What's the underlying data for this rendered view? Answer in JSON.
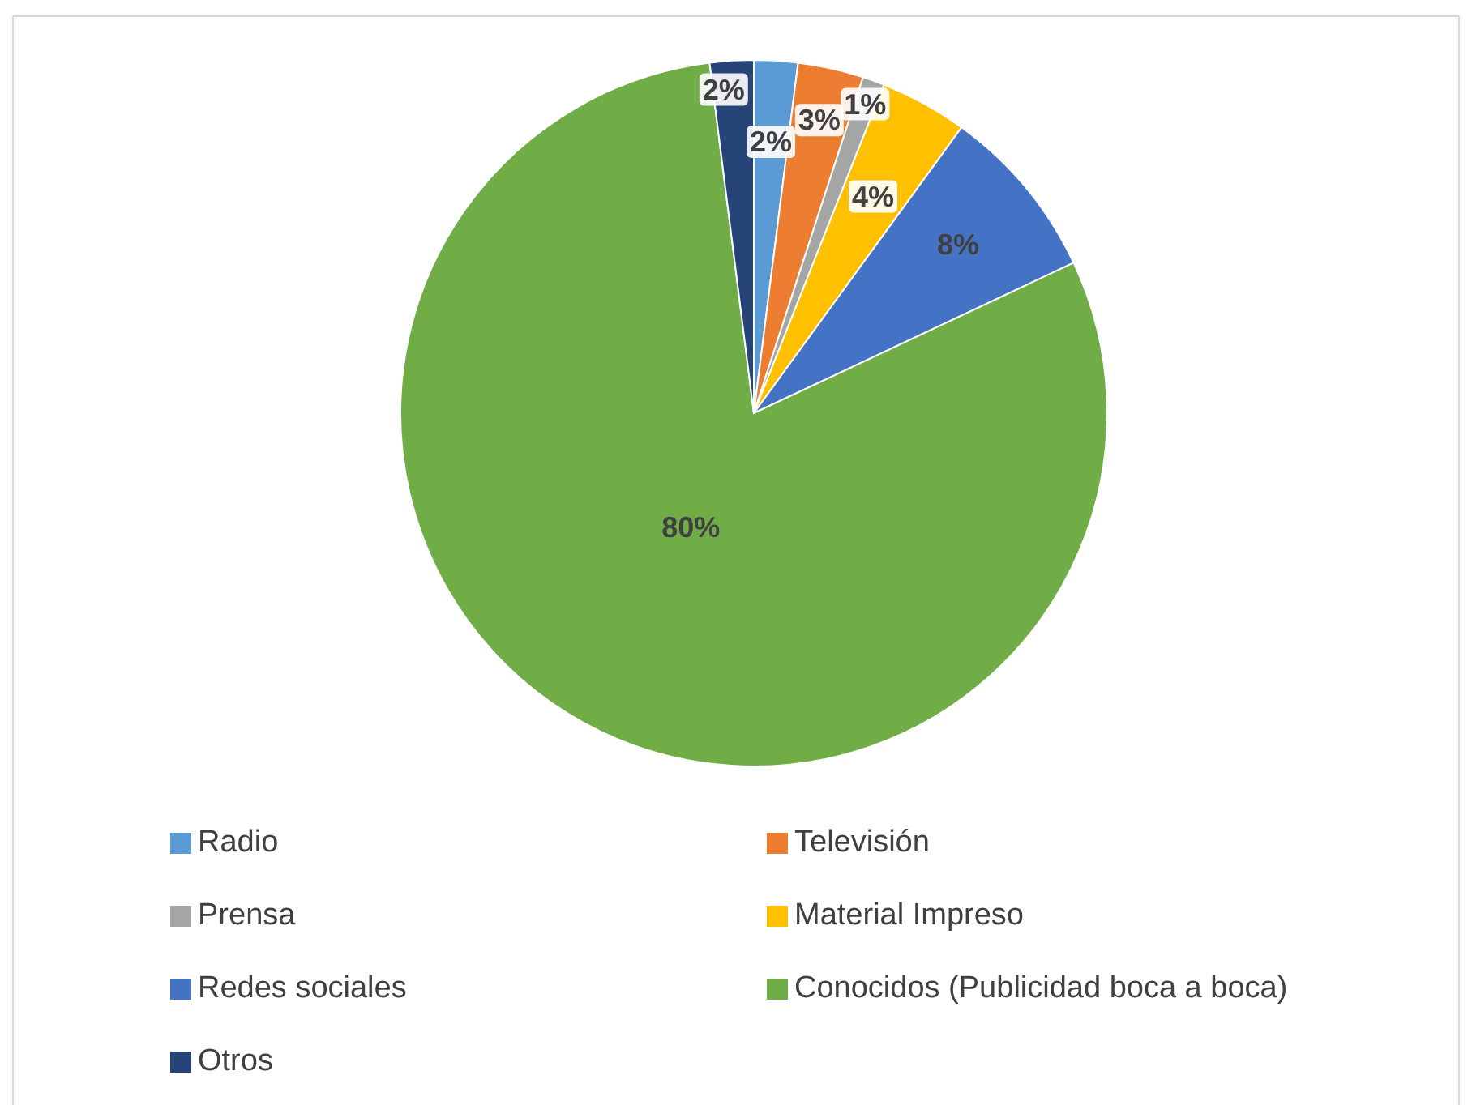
{
  "chart_data": {
    "type": "pie",
    "categories": [
      "Radio",
      "Televisión",
      "Prensa",
      "Material Impreso",
      "Redes sociales",
      "Conocidos (Publicidad boca a boca)",
      "Otros"
    ],
    "values": [
      2,
      3,
      1,
      4,
      8,
      80,
      2
    ],
    "colors": [
      "#5b9bd5",
      "#ed7d31",
      "#a5a5a5",
      "#ffc000",
      "#4472c4",
      "#70ad47",
      "#264478"
    ],
    "value_labels": [
      "2%",
      "3%",
      "1%",
      "4%",
      "8%",
      "80%",
      "2%"
    ],
    "legend": "bottom"
  }
}
